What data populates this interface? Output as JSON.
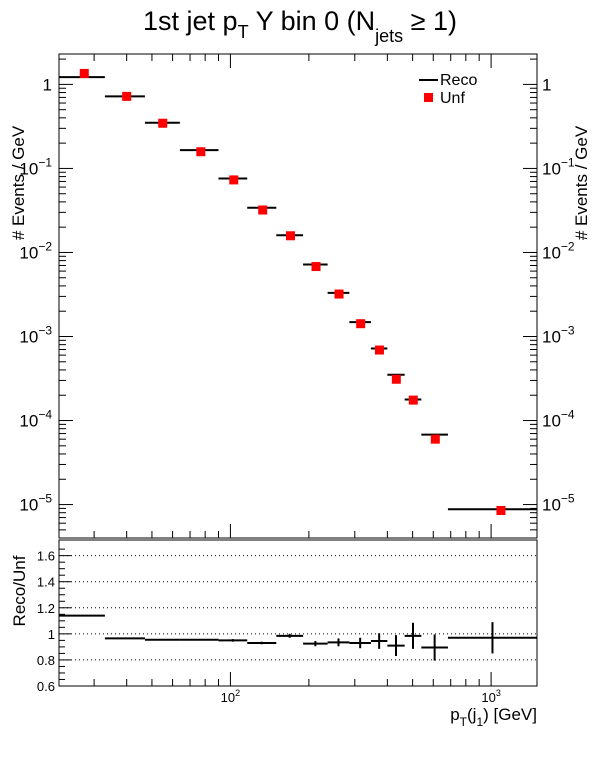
{
  "title": {
    "main": "1st jet p",
    "sub_t": "T",
    "mid": " Y bin 0 (N",
    "sub_jets": "jets",
    "end": " ≥ 1)"
  },
  "chart_data": [
    {
      "type": "scatter",
      "name": "main-panel",
      "ylabel": "# Events / GeV",
      "yscale": "log",
      "xscale": "log",
      "xlim": [
        22,
        1500
      ],
      "ylim": [
        4e-06,
        2.3
      ],
      "legend_position": "top-right",
      "legend": [
        {
          "label": "Reco",
          "marker": "line",
          "color": "#000000"
        },
        {
          "label": "Unf",
          "marker": "square",
          "color": "#ff0000"
        }
      ],
      "ytick_labels": [
        {
          "v": 1,
          "base": "1",
          "exp": ""
        },
        {
          "v": 0.1,
          "base": "10",
          "exp": "−1"
        },
        {
          "v": 0.01,
          "base": "10",
          "exp": "−2"
        },
        {
          "v": 0.001,
          "base": "10",
          "exp": "−3"
        },
        {
          "v": 0.0001,
          "base": "10",
          "exp": "−4"
        },
        {
          "v": 1e-05,
          "base": "10",
          "exp": "−5"
        }
      ],
      "series": [
        {
          "name": "Reco",
          "color": "#000000",
          "bins": [
            {
              "xlo": 22,
              "xhi": 33,
              "y": 1.22
            },
            {
              "xlo": 33,
              "xhi": 47,
              "y": 0.72
            },
            {
              "xlo": 47,
              "xhi": 64,
              "y": 0.35
            },
            {
              "xlo": 64,
              "xhi": 90,
              "y": 0.165
            },
            {
              "xlo": 90,
              "xhi": 116,
              "y": 0.076
            },
            {
              "xlo": 116,
              "xhi": 150,
              "y": 0.034
            },
            {
              "xlo": 150,
              "xhi": 190,
              "y": 0.016
            },
            {
              "xlo": 190,
              "xhi": 236,
              "y": 0.0072
            },
            {
              "xlo": 236,
              "xhi": 286,
              "y": 0.0033
            },
            {
              "xlo": 286,
              "xhi": 346,
              "y": 0.00148
            },
            {
              "xlo": 346,
              "xhi": 400,
              "y": 0.00072
            },
            {
              "xlo": 400,
              "xhi": 466,
              "y": 0.00035
            },
            {
              "xlo": 466,
              "xhi": 540,
              "y": 0.000178
            },
            {
              "xlo": 540,
              "xhi": 683,
              "y": 6.8e-05
            },
            {
              "xlo": 683,
              "xhi": 1500,
              "y": 8.8e-06
            }
          ]
        },
        {
          "name": "Unf",
          "color": "#ff0000",
          "points": [
            {
              "x": 27.5,
              "y": 1.35
            },
            {
              "x": 40,
              "y": 0.72
            },
            {
              "x": 55,
              "y": 0.345
            },
            {
              "x": 77,
              "y": 0.158
            },
            {
              "x": 103,
              "y": 0.073
            },
            {
              "x": 133,
              "y": 0.032
            },
            {
              "x": 170,
              "y": 0.0158
            },
            {
              "x": 213,
              "y": 0.0068
            },
            {
              "x": 261,
              "y": 0.0032
            },
            {
              "x": 316,
              "y": 0.00142
            },
            {
              "x": 373,
              "y": 0.00069
            },
            {
              "x": 433,
              "y": 0.00031
            },
            {
              "x": 503,
              "y": 0.000175
            },
            {
              "x": 611,
              "y": 6e-05
            },
            {
              "x": 1091,
              "y": 8.5e-06
            }
          ]
        }
      ]
    },
    {
      "type": "scatter",
      "name": "ratio-panel",
      "ylabel": "Reco/Unf",
      "xlabel_base": "p",
      "xlabel_sub1": "T",
      "xlabel_mid": "(j",
      "xlabel_sub2": "1",
      "xlabel_end": ") [GeV]",
      "xscale": "log",
      "xlim": [
        22,
        1500
      ],
      "ylim": [
        0.6,
        1.72
      ],
      "grid": true,
      "ytick_labels": [
        "0.6",
        "0.8",
        "1",
        "1.2",
        "1.4",
        "1.6"
      ],
      "ytick_values": [
        0.6,
        0.8,
        1.0,
        1.2,
        1.4,
        1.6
      ],
      "xtick_labels": [
        {
          "v": 100,
          "base": "10",
          "exp": "2"
        },
        {
          "v": 1000,
          "base": "10",
          "exp": "3"
        }
      ],
      "ratio": [
        {
          "xlo": 22,
          "xhi": 33,
          "y": 1.14,
          "err": 0.005
        },
        {
          "xlo": 33,
          "xhi": 47,
          "y": 0.965,
          "err": 0.005
        },
        {
          "xlo": 47,
          "xhi": 64,
          "y": 0.955,
          "err": 0.005
        },
        {
          "xlo": 64,
          "xhi": 90,
          "y": 0.955,
          "err": 0.005
        },
        {
          "xlo": 90,
          "xhi": 116,
          "y": 0.95,
          "err": 0.01
        },
        {
          "xlo": 116,
          "xhi": 150,
          "y": 0.93,
          "err": 0.01
        },
        {
          "xlo": 150,
          "xhi": 190,
          "y": 0.985,
          "err": 0.015
        },
        {
          "xlo": 190,
          "xhi": 236,
          "y": 0.925,
          "err": 0.02
        },
        {
          "xlo": 236,
          "xhi": 286,
          "y": 0.935,
          "err": 0.03
        },
        {
          "xlo": 286,
          "xhi": 346,
          "y": 0.93,
          "err": 0.04
        },
        {
          "xlo": 346,
          "xhi": 400,
          "y": 0.945,
          "err": 0.06
        },
        {
          "xlo": 400,
          "xhi": 466,
          "y": 0.91,
          "err": 0.08
        },
        {
          "xlo": 466,
          "xhi": 540,
          "y": 0.985,
          "err": 0.1
        },
        {
          "xlo": 540,
          "xhi": 683,
          "y": 0.895,
          "err": 0.1
        },
        {
          "xlo": 683,
          "xhi": 1500,
          "y": 0.97,
          "err": 0.12
        }
      ]
    }
  ]
}
